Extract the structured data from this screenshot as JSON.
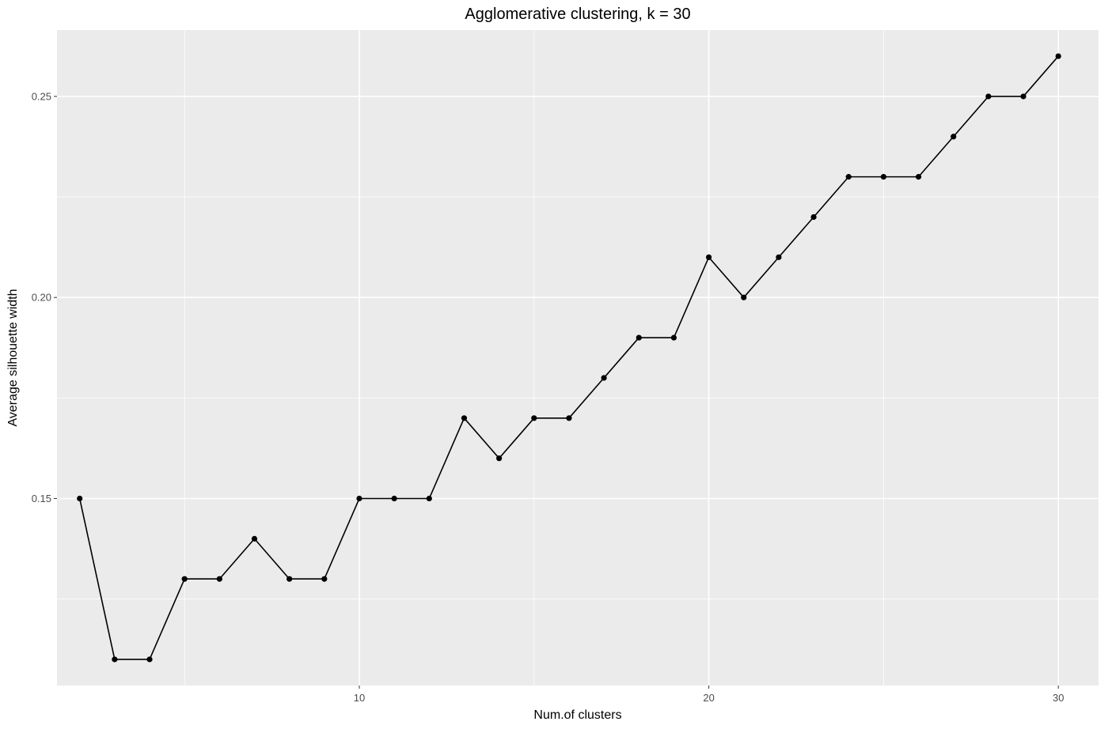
{
  "chart_data": {
    "type": "line",
    "title": "Agglomerative clustering, k = 30",
    "xlabel": "Num.of clusters",
    "ylabel": "Average silhouette width",
    "xlim": [
      1.35,
      31.15
    ],
    "ylim": [
      0.1035,
      0.2665
    ],
    "x_ticks": [
      10,
      20,
      30
    ],
    "x_tick_labels": [
      "10",
      "20",
      "30"
    ],
    "x_minor_ticks": [
      5,
      15,
      25
    ],
    "y_ticks": [
      0.15,
      0.2,
      0.25
    ],
    "y_tick_labels": [
      "0.15",
      "0.20",
      "0.25"
    ],
    "y_minor_ticks": [
      0.125,
      0.175,
      0.225
    ],
    "grid": true,
    "legend": "none",
    "colors": {
      "panel": "#ebebeb",
      "grid": "#ffffff",
      "line": "#000000",
      "point": "#000000"
    },
    "series": [
      {
        "x": [
          2,
          3,
          4,
          5,
          6,
          7,
          8,
          9,
          10,
          11,
          12,
          13,
          14,
          15,
          16,
          17,
          18,
          19,
          20,
          21,
          22,
          23,
          24,
          25,
          26,
          27,
          28,
          29,
          30
        ],
        "values": [
          0.15,
          0.11,
          0.11,
          0.13,
          0.13,
          0.14,
          0.13,
          0.13,
          0.15,
          0.15,
          0.15,
          0.17,
          0.16,
          0.17,
          0.17,
          0.18,
          0.19,
          0.19,
          0.21,
          0.2,
          0.21,
          0.22,
          0.23,
          0.23,
          0.23,
          0.24,
          0.25,
          0.25,
          0.26
        ]
      }
    ]
  }
}
